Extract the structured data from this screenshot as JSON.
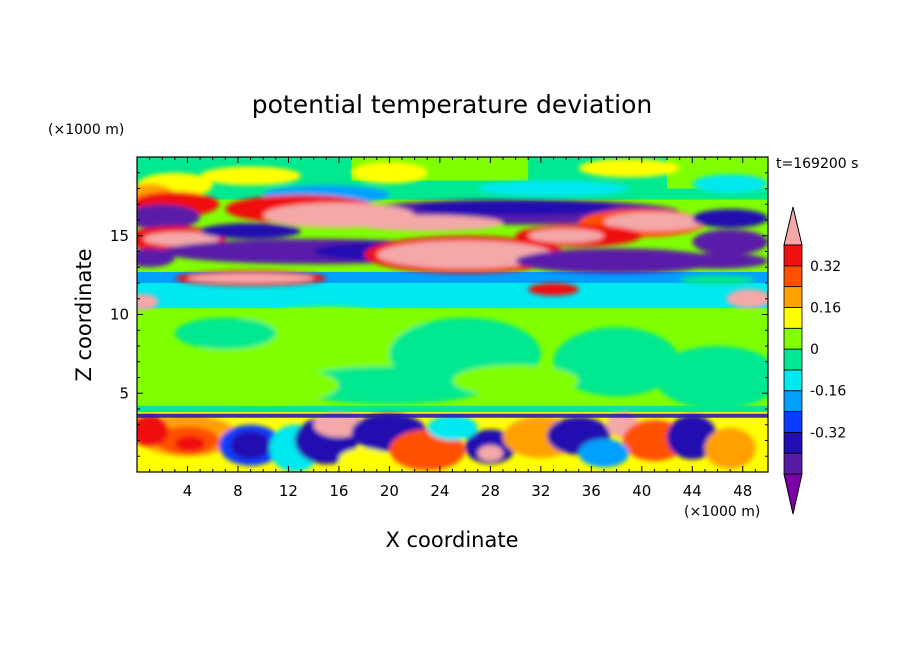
{
  "chart_data": {
    "type": "heatmap",
    "title": "potential temperature deviation",
    "xlabel": "X coordinate",
    "ylabel": "Z coordinate",
    "x_unit": "(×1000 m)",
    "y_unit": "(×1000 m)",
    "time_label": "t=169200 s",
    "xlim": [
      0,
      50
    ],
    "ylim": [
      0,
      20
    ],
    "x_ticks": [
      4,
      8,
      12,
      16,
      20,
      24,
      28,
      32,
      36,
      40,
      44,
      48
    ],
    "y_ticks": [
      5,
      10,
      15
    ],
    "colorbar": {
      "levels": [
        -0.48,
        -0.4,
        -0.32,
        -0.24,
        -0.16,
        -0.08,
        0,
        0.08,
        0.16,
        0.24,
        0.32,
        0.4
      ],
      "colors": [
        "#7b00a8",
        "#5a1aa8",
        "#2010b0",
        "#0a3cff",
        "#00a0ff",
        "#00e8f0",
        "#00e890",
        "#80ff00",
        "#ffff00",
        "#ffa000",
        "#ff5000",
        "#f01010",
        "#f4a8a8"
      ],
      "tick_labels": [
        "0.32",
        "0.16",
        "0",
        "-0.16",
        "-0.32"
      ],
      "tick_values": [
        0.32,
        0.16,
        0,
        -0.16,
        -0.32
      ]
    },
    "field_description": "layered structure: near-neutral (green) bulk; strong positive/negative alternating bands between z=12 and z=18; cyan negative layer z=10.5-12.5; turbulent mixed layer below z=4"
  }
}
